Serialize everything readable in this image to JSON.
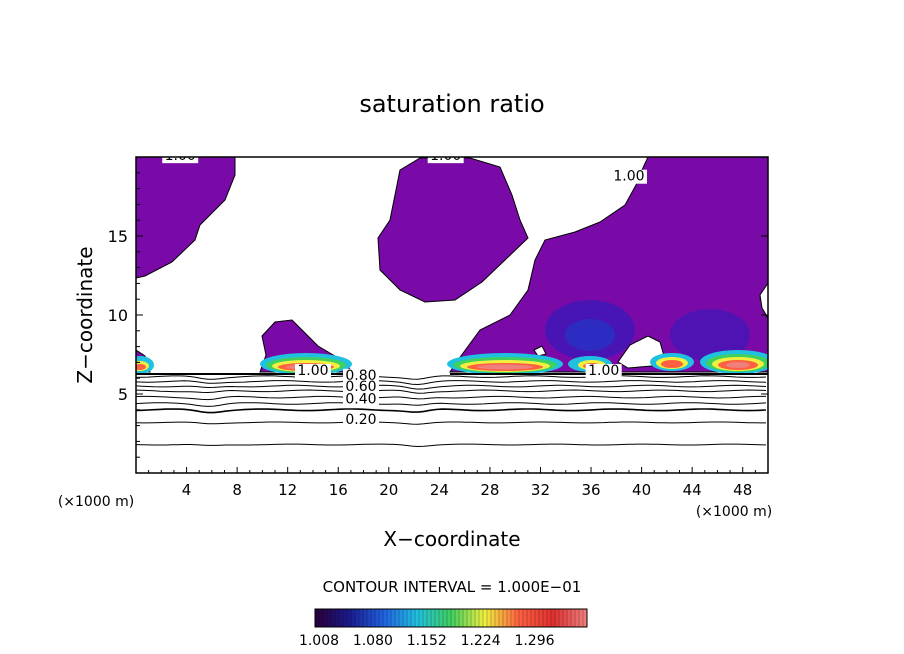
{
  "chart_data": {
    "type": "heatmap",
    "title": "saturation ratio",
    "xlabel": "X−coordinate",
    "ylabel": "Z−coordinate",
    "x_unit_left": "(×1000 m)",
    "x_unit_right": "(×1000 m)",
    "xlim": [
      0,
      50
    ],
    "ylim": [
      0,
      20
    ],
    "x_ticks": [
      4,
      8,
      12,
      16,
      20,
      24,
      28,
      32,
      36,
      40,
      44,
      48
    ],
    "y_ticks": [
      5,
      10,
      15
    ],
    "contour_interval_text": "CONTOUR INTERVAL = 1.000E−01",
    "colorbar": {
      "labels": [
        "1.008",
        "1.080",
        "1.152",
        "1.224",
        "1.296"
      ],
      "colors": [
        "#2a0038",
        "#1a1a8c",
        "#2060e0",
        "#20c0e0",
        "#40d060",
        "#f0f040",
        "#ff6040",
        "#e03030",
        "#f08080"
      ]
    },
    "contour_labels": [
      {
        "text": "1.00",
        "x": 3.5,
        "y": 19.8
      },
      {
        "text": "1.00",
        "x": 24.5,
        "y": 19.8
      },
      {
        "text": "1.00",
        "x": 39.0,
        "y": 18.5
      },
      {
        "text": "1.00",
        "x": 14.0,
        "y": 6.2
      },
      {
        "text": "1.00",
        "x": 37.0,
        "y": 6.2
      },
      {
        "text": "0.80",
        "x": 17.8,
        "y": 5.9
      },
      {
        "text": "0.60",
        "x": 17.8,
        "y": 5.2
      },
      {
        "text": "0.40",
        "x": 17.8,
        "y": 4.4
      },
      {
        "text": "0.20",
        "x": 17.8,
        "y": 3.1
      }
    ],
    "contour_lines_z": [
      1.8,
      3.2,
      4.0,
      4.4,
      4.8,
      5.2,
      5.5,
      5.8,
      6.1
    ]
  },
  "colors": {
    "supersaturated": "#7a0aa8",
    "deep": "#2a1cc4",
    "line": "#000000"
  }
}
